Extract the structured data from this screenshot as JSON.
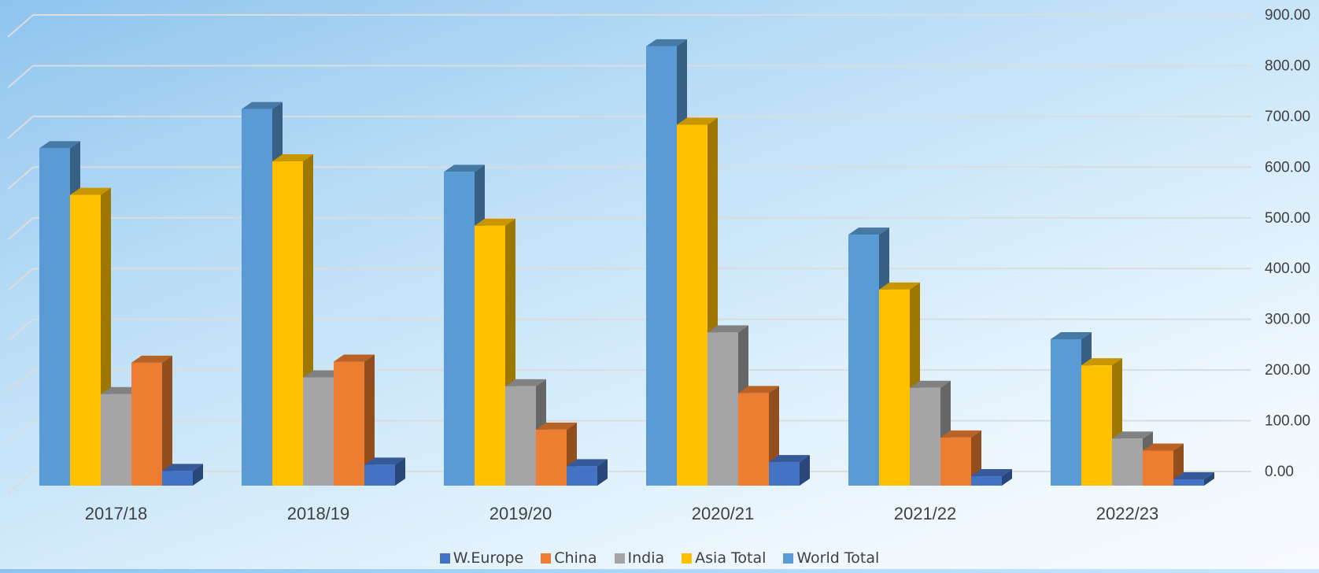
{
  "chart_data": {
    "type": "bar",
    "title": "",
    "xlabel": "",
    "ylabel": "",
    "ylim": [
      0,
      900
    ],
    "yticks": [
      "0.00",
      "100.00",
      "200.00",
      "300.00",
      "400.00",
      "500.00",
      "600.00",
      "700.00",
      "800.00",
      "900.00"
    ],
    "y_axis_position": "right",
    "grid": true,
    "legend_position": "bottom",
    "categories": [
      "2017/18",
      "2018/19",
      "2019/20",
      "2020/21",
      "2021/22",
      "2022/23"
    ],
    "series": [
      {
        "name": "World Total",
        "color": "#5b9bd5",
        "values": [
          645,
          720,
          600,
          840,
          480,
          280
        ]
      },
      {
        "name": "Asia Total",
        "color": "#ffc000",
        "values": [
          556,
          620,
          497,
          690,
          375,
          230
        ]
      },
      {
        "name": "India",
        "color": "#a5a5a5",
        "values": [
          175,
          207,
          190,
          293,
          187,
          90
        ]
      },
      {
        "name": "China",
        "color": "#ed7d31",
        "values": [
          235,
          237,
          107,
          177,
          92,
          67
        ]
      },
      {
        "name": "W.Europe",
        "color": "#4472c4",
        "values": [
          28,
          40,
          37,
          45,
          18,
          12
        ]
      }
    ]
  },
  "legend": [
    {
      "label": "W.Europe",
      "color": "#4472c4"
    },
    {
      "label": "China",
      "color": "#ed7d31"
    },
    {
      "label": "India",
      "color": "#a5a5a5"
    },
    {
      "label": "Asia Total",
      "color": "#ffc000"
    },
    {
      "label": "World Total",
      "color": "#5b9bd5"
    }
  ]
}
